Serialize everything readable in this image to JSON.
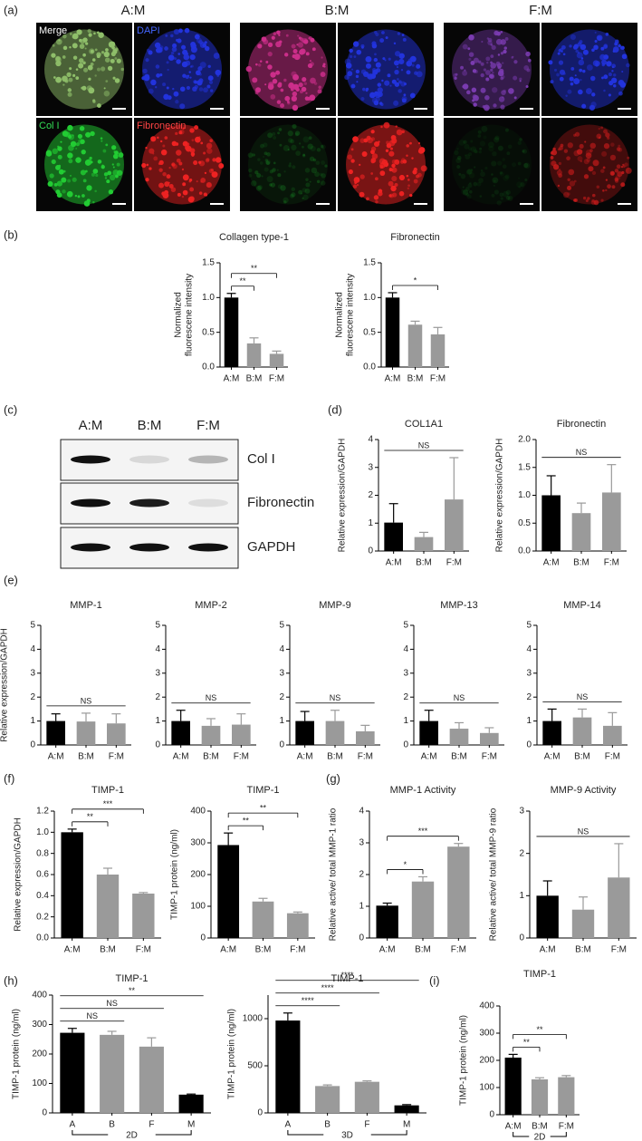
{
  "panel_labels": [
    "(a)",
    "(b)",
    "(c)",
    "(d)",
    "(e)",
    "(f)",
    "(g)",
    "(h)",
    "(i)"
  ],
  "microscopy": {
    "groups": [
      "A:M",
      "B:M",
      "F:M"
    ],
    "channels": [
      "Merge",
      "DAPI",
      "Col I",
      "Fibronectin"
    ]
  },
  "blot": {
    "lanes": [
      "A:M",
      "B:M",
      "F:M"
    ],
    "rows": [
      "Col I",
      "Fibronectin",
      "GAPDH"
    ]
  },
  "chart_data": [
    {
      "type": "bar",
      "title": "Collagen type-1",
      "ylabel": [
        "Normalized",
        "fluorescene intensity"
      ],
      "categories": [
        "A:M",
        "B:M",
        "F:M"
      ],
      "values": [
        1.0,
        0.34,
        0.19
      ],
      "errors": [
        0.06,
        0.08,
        0.04
      ],
      "colors": [
        "#000000",
        "#9a9a9a",
        "#9a9a9a"
      ],
      "ylim": [
        0,
        1.5
      ],
      "yticks": [
        {
          "value": 0,
          "label": "0.0"
        },
        {
          "value": 0.5,
          "label": "0.5"
        },
        {
          "value": 1,
          "label": "1.0"
        },
        {
          "value": 1.5,
          "label": "1.5"
        }
      ],
      "bracket_style": "bracket",
      "significance": [
        {
          "from": "A:M",
          "to": "B:M",
          "label": "**"
        },
        {
          "from": "A:M",
          "to": "F:M",
          "label": "**"
        }
      ]
    },
    {
      "type": "bar",
      "title": "Fibronectin",
      "ylabel": [
        "Normalized",
        "fluorescene intensity"
      ],
      "categories": [
        "A:M",
        "B:M",
        "F:M"
      ],
      "values": [
        1.0,
        0.61,
        0.47
      ],
      "errors": [
        0.07,
        0.05,
        0.1
      ],
      "colors": [
        "#000000",
        "#9a9a9a",
        "#9a9a9a"
      ],
      "ylim": [
        0,
        1.5
      ],
      "yticks": [
        {
          "value": 0,
          "label": "0.0"
        },
        {
          "value": 0.5,
          "label": "0.5"
        },
        {
          "value": 1,
          "label": "1.0"
        },
        {
          "value": 1.5,
          "label": "1.5"
        }
      ],
      "bracket_style": "bracket",
      "significance": [
        {
          "from": "A:M",
          "to": "F:M",
          "label": "*"
        }
      ]
    },
    {
      "type": "bar",
      "title": "COL1A1",
      "ylabel": [
        "Relative expression/GAPDH"
      ],
      "categories": [
        "A:M",
        "B:M",
        "F:M"
      ],
      "values": [
        1.02,
        0.5,
        1.85
      ],
      "errors": [
        0.68,
        0.17,
        1.5
      ],
      "colors": [
        "#000000",
        "#9a9a9a",
        "#9a9a9a"
      ],
      "ylim": [
        0,
        4
      ],
      "yticks": [
        0,
        1,
        2,
        3,
        4
      ],
      "bracket_style": "line",
      "significance": [
        {
          "from": "A:M",
          "to": "F:M",
          "label": "NS"
        }
      ]
    },
    {
      "type": "bar",
      "title": "Fibronectin",
      "ylabel": [
        "Relative expression/GAPDH"
      ],
      "categories": [
        "A:M",
        "B:M",
        "F:M"
      ],
      "values": [
        1.0,
        0.68,
        1.05
      ],
      "errors": [
        0.35,
        0.18,
        0.5
      ],
      "colors": [
        "#000000",
        "#9a9a9a",
        "#9a9a9a"
      ],
      "ylim": [
        0,
        2
      ],
      "yticks": [
        {
          "value": 0,
          "label": "0.0"
        },
        {
          "value": 0.5,
          "label": "0.5"
        },
        {
          "value": 1,
          "label": "1.0"
        },
        {
          "value": 1.5,
          "label": "1.5"
        },
        {
          "value": 2,
          "label": "2.0"
        }
      ],
      "bracket_style": "line",
      "significance": [
        {
          "from": "A:M",
          "to": "F:M",
          "label": "NS"
        }
      ]
    },
    {
      "type": "bar",
      "title": "MMP-1",
      "ylabel": [
        "Relative expression/GAPDH"
      ],
      "categories": [
        "A:M",
        "B:M",
        "F:M"
      ],
      "values": [
        1.0,
        0.98,
        0.9
      ],
      "errors": [
        0.3,
        0.35,
        0.4
      ],
      "colors": [
        "#000000",
        "#9a9a9a",
        "#9a9a9a"
      ],
      "ylim": [
        0,
        5
      ],
      "yticks": [
        0,
        1,
        2,
        3,
        4,
        5
      ],
      "bracket_style": "line",
      "significance": [
        {
          "from": "A:M",
          "to": "F:M",
          "label": "NS"
        }
      ]
    },
    {
      "type": "bar",
      "title": "MMP-2",
      "categories": [
        "A:M",
        "B:M",
        "F:M"
      ],
      "values": [
        1.0,
        0.8,
        0.85
      ],
      "errors": [
        0.45,
        0.3,
        0.45
      ],
      "colors": [
        "#000000",
        "#9a9a9a",
        "#9a9a9a"
      ],
      "ylim": [
        0,
        5
      ],
      "yticks": [
        0,
        1,
        2,
        3,
        4,
        5
      ],
      "bracket_style": "line",
      "significance": [
        {
          "from": "A:M",
          "to": "F:M",
          "label": "NS"
        }
      ]
    },
    {
      "type": "bar",
      "title": "MMP-9",
      "categories": [
        "A:M",
        "B:M",
        "F:M"
      ],
      "values": [
        1.0,
        1.0,
        0.57
      ],
      "errors": [
        0.4,
        0.45,
        0.25
      ],
      "colors": [
        "#000000",
        "#9a9a9a",
        "#9a9a9a"
      ],
      "ylim": [
        0,
        5
      ],
      "yticks": [
        0,
        1,
        2,
        3,
        4,
        5
      ],
      "bracket_style": "line",
      "significance": [
        {
          "from": "A:M",
          "to": "F:M",
          "label": "NS"
        }
      ]
    },
    {
      "type": "bar",
      "title": "MMP-13",
      "categories": [
        "A:M",
        "B:M",
        "F:M"
      ],
      "values": [
        1.0,
        0.68,
        0.5
      ],
      "errors": [
        0.45,
        0.25,
        0.22
      ],
      "colors": [
        "#000000",
        "#9a9a9a",
        "#9a9a9a"
      ],
      "ylim": [
        0,
        5
      ],
      "yticks": [
        0,
        1,
        2,
        3,
        4,
        5
      ],
      "bracket_style": "line",
      "significance": [
        {
          "from": "A:M",
          "to": "F:M",
          "label": "NS"
        }
      ]
    },
    {
      "type": "bar",
      "title": "MMP-14",
      "categories": [
        "A:M",
        "B:M",
        "F:M"
      ],
      "values": [
        1.0,
        1.15,
        0.8
      ],
      "errors": [
        0.5,
        0.35,
        0.55
      ],
      "colors": [
        "#000000",
        "#9a9a9a",
        "#9a9a9a"
      ],
      "ylim": [
        0,
        5
      ],
      "yticks": [
        0,
        1,
        2,
        3,
        4,
        5
      ],
      "bracket_style": "line",
      "significance": [
        {
          "from": "A:M",
          "to": "F:M",
          "label": "NS"
        }
      ]
    },
    {
      "type": "bar",
      "title": "TIMP-1",
      "ylabel": [
        "Relative expression/GAPDH"
      ],
      "categories": [
        "A:M",
        "B:M",
        "F:M"
      ],
      "values": [
        1.0,
        0.6,
        0.42
      ],
      "errors": [
        0.03,
        0.06,
        0.01
      ],
      "colors": [
        "#000000",
        "#9a9a9a",
        "#9a9a9a"
      ],
      "ylim": [
        0,
        1.2
      ],
      "yticks": [
        {
          "value": 0,
          "label": "0.0"
        },
        {
          "value": 0.2,
          "label": "0.2"
        },
        {
          "value": 0.4,
          "label": "0.4"
        },
        {
          "value": 0.6,
          "label": "0.6"
        },
        {
          "value": 0.8,
          "label": "0.8"
        },
        {
          "value": 1,
          "label": "1.0"
        },
        {
          "value": 1.2,
          "label": "1.2"
        }
      ],
      "bracket_style": "bracket",
      "significance": [
        {
          "from": "A:M",
          "to": "B:M",
          "label": "**"
        },
        {
          "from": "A:M",
          "to": "F:M",
          "label": "***"
        }
      ]
    },
    {
      "type": "bar",
      "title": "TIMP-1",
      "ylabel": [
        "TIMP-1 protein (ng/ml)"
      ],
      "categories": [
        "A:M",
        "B:M",
        "F:M"
      ],
      "values": [
        293,
        115,
        78
      ],
      "errors": [
        38,
        10,
        4
      ],
      "colors": [
        "#000000",
        "#9a9a9a",
        "#9a9a9a"
      ],
      "ylim": [
        0,
        400
      ],
      "yticks": [
        0,
        100,
        200,
        300,
        400
      ],
      "bracket_style": "bracket",
      "significance": [
        {
          "from": "A:M",
          "to": "B:M",
          "label": "**"
        },
        {
          "from": "A:M",
          "to": "F:M",
          "label": "**"
        }
      ]
    },
    {
      "type": "bar",
      "title": "MMP-1 Activity",
      "ylabel": [
        "Relative active/ total MMP-1 ratio"
      ],
      "categories": [
        "A:M",
        "B:M",
        "F:M"
      ],
      "values": [
        1.02,
        1.78,
        2.88
      ],
      "errors": [
        0.08,
        0.15,
        0.1
      ],
      "colors": [
        "#000000",
        "#9a9a9a",
        "#9a9a9a"
      ],
      "ylim": [
        0,
        4
      ],
      "yticks": [
        0,
        1,
        2,
        3,
        4
      ],
      "bracket_style": "bracket",
      "significance": [
        {
          "from": "A:M",
          "to": "B:M",
          "label": "*"
        },
        {
          "from": "A:M",
          "to": "F:M",
          "label": "***"
        }
      ]
    },
    {
      "type": "bar",
      "title": "MMP-9 Activity",
      "ylabel": [
        "Relative active/ total MMP-9 ratio"
      ],
      "categories": [
        "A:M",
        "B:M",
        "F:M"
      ],
      "values": [
        1.0,
        0.67,
        1.43
      ],
      "errors": [
        0.35,
        0.3,
        0.8
      ],
      "colors": [
        "#000000",
        "#9a9a9a",
        "#9a9a9a"
      ],
      "ylim": [
        0,
        3
      ],
      "yticks": [
        0,
        1,
        2,
        3
      ],
      "bracket_style": "line",
      "significance": [
        {
          "from": "A:M",
          "to": "F:M",
          "label": "NS"
        }
      ]
    },
    {
      "type": "bar",
      "title": "TIMP-1",
      "ylabel": [
        "TIMP-1 protein (ng/ml)"
      ],
      "categories": [
        "A",
        "B",
        "F",
        "M"
      ],
      "values": [
        272,
        265,
        225,
        62
      ],
      "errors": [
        15,
        12,
        30,
        2
      ],
      "colors": [
        "#000000",
        "#9a9a9a",
        "#9a9a9a",
        "#000000"
      ],
      "ylim": [
        0,
        400
      ],
      "yticks": [
        0,
        100,
        200,
        300,
        400
      ],
      "bracket_style": "line",
      "group_label": "2D",
      "significance": [
        {
          "from": "A",
          "to": "B",
          "label": "NS"
        },
        {
          "from": "A",
          "to": "F",
          "label": "NS"
        },
        {
          "from": "A",
          "to": "M",
          "label": "**"
        }
      ]
    },
    {
      "type": "bar",
      "title": "TIMP-1",
      "ylabel": [
        "TIMP-1 protein (ng/ml)"
      ],
      "categories": [
        "A",
        "B",
        "F",
        "M"
      ],
      "values": [
        980,
        285,
        330,
        80
      ],
      "errors": [
        80,
        12,
        10,
        8
      ],
      "colors": [
        "#000000",
        "#9a9a9a",
        "#9a9a9a",
        "#000000"
      ],
      "ylim": [
        0,
        1250
      ],
      "yticks": [
        0,
        500,
        1000
      ],
      "bracket_style": "line",
      "group_label": "3D",
      "significance": [
        {
          "from": "A",
          "to": "B",
          "label": "****"
        },
        {
          "from": "A",
          "to": "F",
          "label": "****"
        },
        {
          "from": "A",
          "to": "M",
          "label": "****"
        }
      ]
    },
    {
      "type": "bar",
      "title": "TIMP-1",
      "ylabel": [
        "TIMP-1 protein (ng/ml)"
      ],
      "categories": [
        "A:M",
        "B:M",
        "F:M"
      ],
      "values": [
        210,
        130,
        138
      ],
      "errors": [
        12,
        6,
        6
      ],
      "colors": [
        "#000000",
        "#9a9a9a",
        "#9a9a9a"
      ],
      "ylim": [
        0,
        400
      ],
      "yticks": [
        0,
        100,
        200,
        300,
        400
      ],
      "bracket_style": "bracket",
      "group_label": "2D",
      "significance": [
        {
          "from": "A:M",
          "to": "B:M",
          "label": "**"
        },
        {
          "from": "A:M",
          "to": "F:M",
          "label": "**"
        }
      ]
    }
  ]
}
